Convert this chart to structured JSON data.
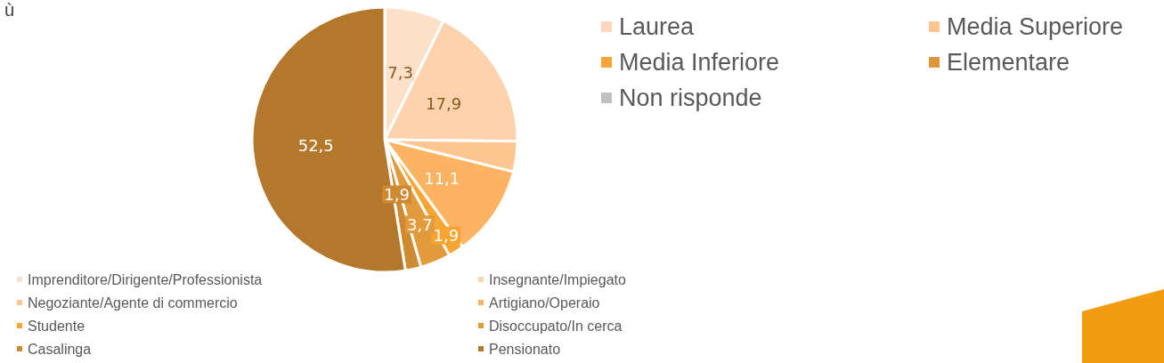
{
  "chart_data": {
    "type": "pie",
    "title": "ù",
    "categories": [
      "Imprenditore/Dirigente/Professionista",
      "Insegnante/Impiegato",
      "Negoziante/Agente di commercio",
      "Artigiano/Operaio",
      "Studente",
      "Disoccupato/In cerca",
      "Casalinga",
      "Pensionato"
    ],
    "values": [
      7.3,
      17.9,
      3.7,
      11.1,
      1.9,
      3.7,
      1.9,
      52.5
    ],
    "value_labels": [
      "7,3",
      "17,9",
      null,
      "11,1",
      "1,9",
      "3,7",
      "1,9",
      "52,5"
    ],
    "colors": [
      "#fde0c8",
      "#fdd3ad",
      "#fdc590",
      "#fdb462",
      "#f7a530",
      "#e19a3c",
      "#cd8a30",
      "#b3782b"
    ],
    "legend": "bottom",
    "annotations": [
      "Laurea",
      "Media Superiore",
      "Media Inferiore",
      "Elementare",
      "Non risponde"
    ]
  }
}
